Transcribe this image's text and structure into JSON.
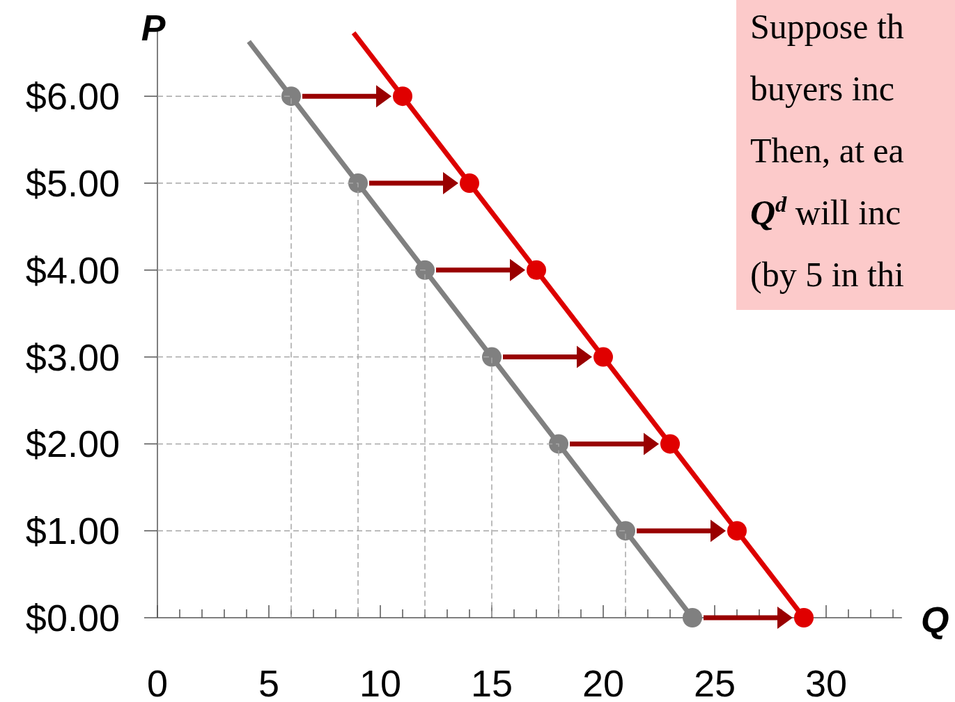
{
  "chart_data": {
    "type": "line",
    "xlabel": "Q",
    "ylabel": "P",
    "xlim": [
      0,
      33.4
    ],
    "ylim": [
      0,
      6.75
    ],
    "xticks": [
      0,
      {
        "value": 1,
        "label": null
      },
      {
        "value": 2,
        "label": null
      },
      {
        "value": 3,
        "label": null
      },
      {
        "value": 4,
        "label": null
      },
      5,
      {
        "value": 6,
        "label": null
      },
      {
        "value": 7,
        "label": null
      },
      {
        "value": 8,
        "label": null
      },
      {
        "value": 9,
        "label": null
      },
      10,
      {
        "value": 11,
        "label": null
      },
      {
        "value": 12,
        "label": null
      },
      {
        "value": 13,
        "label": null
      },
      {
        "value": 14,
        "label": null
      },
      15,
      {
        "value": 16,
        "label": null
      },
      {
        "value": 17,
        "label": null
      },
      {
        "value": 18,
        "label": null
      },
      {
        "value": 19,
        "label": null
      },
      20,
      {
        "value": 21,
        "label": null
      },
      {
        "value": 22,
        "label": null
      },
      {
        "value": 23,
        "label": null
      },
      {
        "value": 24,
        "label": null
      },
      25,
      {
        "value": 26,
        "label": null
      },
      {
        "value": 27,
        "label": null
      },
      {
        "value": 28,
        "label": null
      },
      {
        "value": 29,
        "label": null
      },
      30,
      {
        "value": 31,
        "label": null
      },
      {
        "value": 32,
        "label": null
      },
      {
        "value": 33,
        "label": null
      }
    ],
    "yticks": [
      {
        "value": 0,
        "label": "$0.00"
      },
      {
        "value": 1,
        "label": "$1.00"
      },
      {
        "value": 2,
        "label": "$2.00"
      },
      {
        "value": 3,
        "label": "$3.00"
      },
      {
        "value": 4,
        "label": "$4.00"
      },
      {
        "value": 5,
        "label": "$5.00"
      },
      {
        "value": 6,
        "label": "$6.00"
      }
    ],
    "grid": false,
    "series": [
      {
        "line_style": "dashed",
        "marker": "none",
        "color": "#a6a6a6",
        "x": [
          0,
          6,
          6,
          null,
          0,
          9,
          9,
          null,
          0,
          12,
          12,
          null,
          0,
          15,
          15,
          null,
          0,
          18,
          18,
          null,
          0,
          21,
          21
        ],
        "values": [
          6,
          6,
          0,
          null,
          5,
          5,
          0,
          null,
          4,
          4,
          0,
          null,
          3,
          3,
          0,
          null,
          2,
          2,
          0,
          null,
          1,
          1,
          0
        ]
      },
      {
        "marker": "none",
        "color": "#808080",
        "x": [
          4.1,
          24
        ],
        "values": [
          6.63,
          0
        ]
      },
      {
        "marker": "none",
        "color": "#dd0000",
        "x": [
          8.8,
          29
        ],
        "values": [
          6.73,
          0
        ]
      },
      {
        "type": "scatter",
        "marker": "circle",
        "color": "#808080",
        "x": [
          6,
          9,
          12,
          15,
          18,
          21,
          24
        ],
        "values": [
          6,
          5,
          4,
          3,
          2,
          1,
          0
        ]
      },
      {
        "type": "scatter",
        "marker": "circle",
        "color": "#e00000",
        "x": [
          11,
          14,
          17,
          20,
          23,
          26,
          29
        ],
        "values": [
          6,
          5,
          4,
          3,
          2,
          1,
          0
        ]
      }
    ],
    "annotations": [
      "Suppose th",
      "buyers inc",
      "Then, at ea",
      "Q$^{d}$ will inc",
      "(by 5 in thi"
    ]
  }
}
